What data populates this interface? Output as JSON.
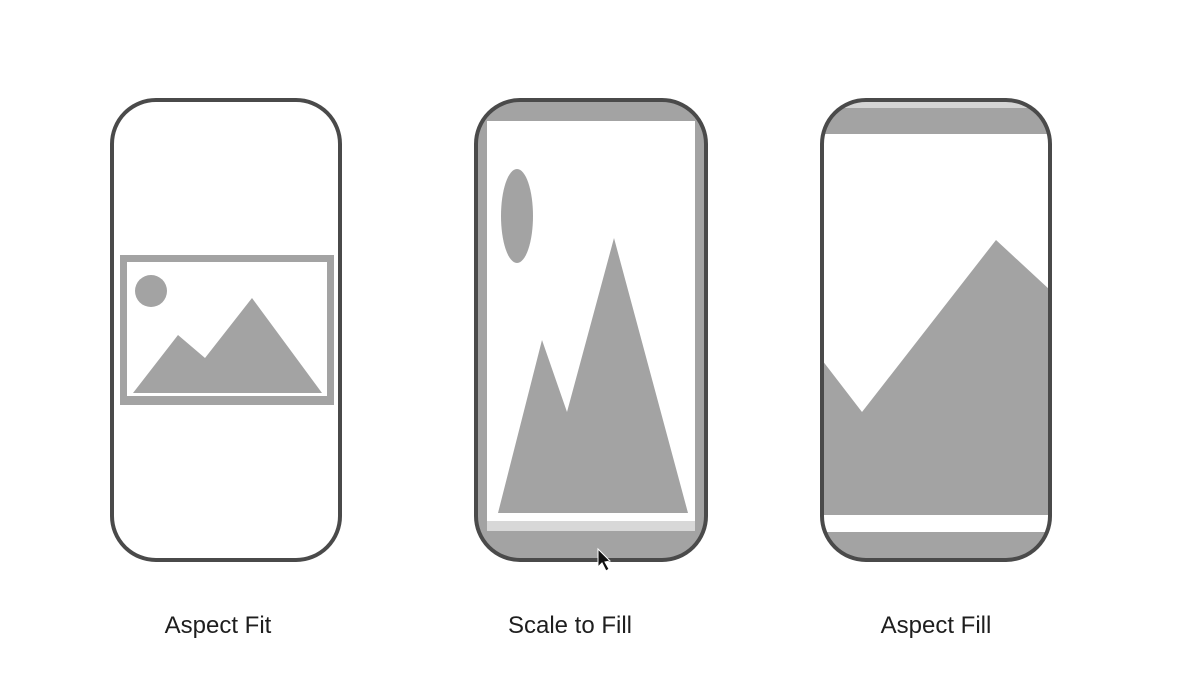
{
  "modes": [
    {
      "label": "Aspect Fit"
    },
    {
      "label": "Scale to Fill"
    },
    {
      "label": "Aspect Fill"
    }
  ],
  "colors": {
    "frame": "#4a4a4a",
    "image_fill": "#a3a3a3",
    "background": "#ffffff",
    "label_text": "#1e1e1e"
  },
  "icons": {
    "pointer": "mouse-pointer-icon"
  }
}
